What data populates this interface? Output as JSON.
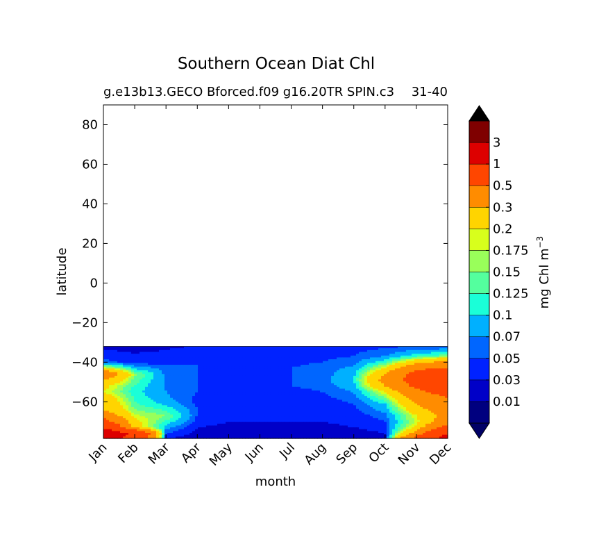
{
  "chart_data": {
    "type": "heatmap",
    "title": "Southern Ocean Diat Chl",
    "subtitle_left": "g.e13b13.GECO Bforced.f09 g16.20TR SPIN.c3",
    "subtitle_right": "31-40",
    "xlabel": "month",
    "ylabel": "latitude",
    "colorbar_label": "mg Chl m",
    "colorbar_label_exp": "−3",
    "x_ticks": [
      "Jan",
      "Feb",
      "Mar",
      "Apr",
      "May",
      "Jun",
      "Jul",
      "Aug",
      "Sep",
      "Oct",
      "Nov",
      "Dec"
    ],
    "y_ticks": [
      {
        "value": 80,
        "label": "80"
      },
      {
        "value": 60,
        "label": "60"
      },
      {
        "value": 40,
        "label": "40"
      },
      {
        "value": 20,
        "label": "20"
      },
      {
        "value": 0,
        "label": "0"
      },
      {
        "value": -20,
        "label": "−20"
      },
      {
        "value": -40,
        "label": "−40"
      },
      {
        "value": -60,
        "label": "−60"
      }
    ],
    "xlim": [
      0,
      11
    ],
    "ylim": [
      -78.5,
      90
    ],
    "data_lat_range": [
      -78.5,
      -32
    ],
    "colorbar_ticks": [
      "3",
      "1",
      "0.5",
      "0.3",
      "0.2",
      "0.175",
      "0.15",
      "0.125",
      "0.1",
      "0.07",
      "0.05",
      "0.03",
      "0.01"
    ],
    "colorbar_colors": [
      "#00007f",
      "#0000c8",
      "#0022ff",
      "#0066ff",
      "#00b0ff",
      "#1affd8",
      "#54ff9e",
      "#99ff5a",
      "#d8ff1c",
      "#ffd400",
      "#ff8c00",
      "#ff4600",
      "#dd0000",
      "#7f0000"
    ],
    "colorbar_under": "#000066",
    "colorbar_over": "#000000",
    "levels": [
      0,
      0.01,
      0.03,
      0.05,
      0.07,
      0.1,
      0.125,
      0.15,
      0.175,
      0.2,
      0.3,
      0.5,
      1,
      3
    ],
    "lat_grid": [
      -78.5,
      -76,
      -73,
      -70,
      -67,
      -64,
      -61,
      -58,
      -55,
      -52,
      -49,
      -46,
      -43,
      -40,
      -37,
      -34,
      -32
    ],
    "values": [
      [
        1.2,
        0.8,
        0.03,
        0.02,
        0.015,
        0.015,
        0.01,
        0.01,
        0.015,
        0.02,
        0.6,
        1.2
      ],
      [
        1.5,
        0.9,
        0.05,
        0.025,
        0.02,
        0.02,
        0.02,
        0.02,
        0.02,
        0.03,
        0.35,
        1.0
      ],
      [
        0.9,
        0.25,
        0.08,
        0.03,
        0.025,
        0.025,
        0.025,
        0.025,
        0.03,
        0.04,
        0.22,
        0.6
      ],
      [
        0.6,
        0.22,
        0.12,
        0.04,
        0.03,
        0.03,
        0.03,
        0.03,
        0.035,
        0.05,
        0.18,
        0.4
      ],
      [
        0.4,
        0.18,
        0.15,
        0.05,
        0.035,
        0.035,
        0.035,
        0.035,
        0.04,
        0.06,
        0.2,
        0.35
      ],
      [
        0.3,
        0.15,
        0.12,
        0.05,
        0.035,
        0.035,
        0.035,
        0.035,
        0.045,
        0.08,
        0.25,
        0.4
      ],
      [
        0.28,
        0.13,
        0.09,
        0.045,
        0.035,
        0.035,
        0.04,
        0.04,
        0.05,
        0.1,
        0.3,
        0.45
      ],
      [
        0.25,
        0.12,
        0.075,
        0.045,
        0.04,
        0.04,
        0.045,
        0.045,
        0.06,
        0.15,
        0.35,
        0.5
      ],
      [
        0.2,
        0.11,
        0.07,
        0.05,
        0.045,
        0.045,
        0.045,
        0.05,
        0.07,
        0.2,
        0.45,
        0.6
      ],
      [
        0.22,
        0.12,
        0.068,
        0.05,
        0.045,
        0.045,
        0.05,
        0.055,
        0.09,
        0.3,
        0.55,
        0.65
      ],
      [
        0.3,
        0.14,
        0.065,
        0.05,
        0.045,
        0.045,
        0.05,
        0.06,
        0.1,
        0.35,
        0.6,
        0.7
      ],
      [
        0.45,
        0.16,
        0.062,
        0.05,
        0.045,
        0.045,
        0.05,
        0.06,
        0.09,
        0.3,
        0.6,
        0.7
      ],
      [
        0.2,
        0.09,
        0.058,
        0.05,
        0.045,
        0.045,
        0.05,
        0.06,
        0.075,
        0.2,
        0.45,
        0.5
      ],
      [
        0.06,
        0.04,
        0.04,
        0.05,
        0.045,
        0.045,
        0.045,
        0.05,
        0.06,
        0.12,
        0.25,
        0.35
      ],
      [
        0.04,
        0.032,
        0.035,
        0.045,
        0.04,
        0.04,
        0.04,
        0.045,
        0.05,
        0.07,
        0.12,
        0.15
      ],
      [
        0.03,
        0.028,
        0.03,
        0.035,
        0.035,
        0.035,
        0.035,
        0.04,
        0.045,
        0.055,
        0.07,
        0.08
      ],
      [
        0.025,
        0.025,
        0.028,
        0.03,
        0.03,
        0.03,
        0.03,
        0.035,
        0.04,
        0.045,
        0.05,
        0.055
      ]
    ]
  }
}
